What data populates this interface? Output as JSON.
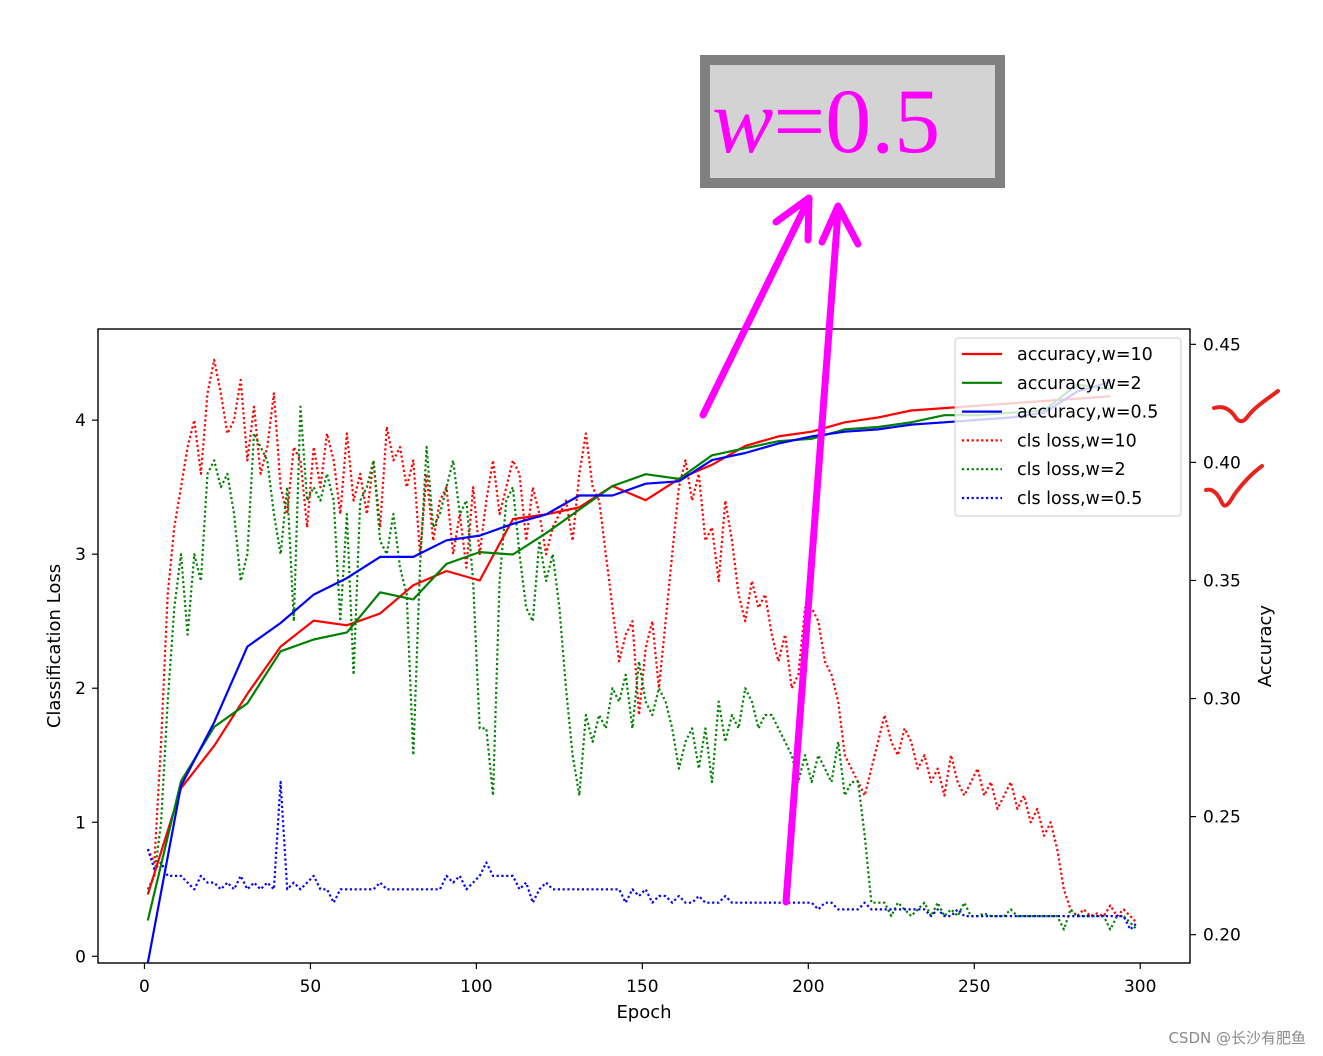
{
  "annotation": {
    "callout_italic": "w",
    "callout_rest": "=0.5",
    "text_color": "#ff00ff",
    "box_fill": "#d3d3d3",
    "box_border": "#808080",
    "checkmark_color": "#e8231b"
  },
  "watermark": "CSDN @长沙有肥鱼",
  "chart_data": {
    "type": "line",
    "title": "",
    "xlabel": "Epoch",
    "ylabel_left": "Classification Loss",
    "ylabel_right": "Accuracy",
    "xlim": [
      -14,
      315
    ],
    "ylim_left": [
      -0.05,
      4.68
    ],
    "ylim_right": [
      0.188,
      0.4565
    ],
    "x_ticks": [
      "0",
      "50",
      "100",
      "150",
      "200",
      "250",
      "300"
    ],
    "y_left_ticks": [
      "0",
      "1",
      "2",
      "3",
      "4"
    ],
    "y_right_ticks": [
      "0.20",
      "0.25",
      "0.30",
      "0.35",
      "0.40",
      "0.45"
    ],
    "grid": false,
    "legend_position": "upper right",
    "accuracy_series": [
      {
        "name": "accuracy,w=10",
        "color": "#ff0000",
        "style": "solid",
        "x": [
          1,
          11,
          21,
          31,
          41,
          51,
          61,
          71,
          81,
          91,
          101,
          111,
          121,
          131,
          141,
          151,
          161,
          171,
          181,
          191,
          201,
          211,
          221,
          231,
          241,
          251,
          261,
          271,
          281,
          291
        ],
        "y": [
          0.217,
          0.262,
          0.28,
          0.302,
          0.322,
          0.333,
          0.331,
          0.336,
          0.348,
          0.354,
          0.35,
          0.376,
          0.378,
          0.381,
          0.39,
          0.384,
          0.393,
          0.399,
          0.407,
          0.411,
          0.413,
          0.417,
          0.419,
          0.422,
          0.423,
          0.424,
          0.425,
          0.426,
          0.427,
          0.428
        ]
      },
      {
        "name": "accuracy,w=2",
        "color": "#008000",
        "style": "solid",
        "x": [
          1,
          11,
          21,
          31,
          41,
          51,
          61,
          71,
          81,
          91,
          101,
          111,
          121,
          131,
          141,
          151,
          161,
          171,
          181,
          191,
          201,
          211,
          221,
          231,
          241,
          251,
          261,
          271,
          281,
          291
        ],
        "y": [
          0.206,
          0.265,
          0.288,
          0.298,
          0.32,
          0.325,
          0.328,
          0.345,
          0.342,
          0.357,
          0.362,
          0.361,
          0.37,
          0.38,
          0.39,
          0.395,
          0.393,
          0.403,
          0.406,
          0.409,
          0.41,
          0.414,
          0.415,
          0.417,
          0.42,
          0.42,
          0.421,
          0.422,
          0.433,
          0.431
        ]
      },
      {
        "name": "accuracy,w=0.5",
        "color": "#0000ff",
        "style": "solid",
        "x": [
          1,
          11,
          21,
          31,
          41,
          51,
          61,
          71,
          81,
          91,
          101,
          111,
          121,
          131,
          141,
          151,
          161,
          171,
          181,
          191,
          201,
          211,
          221,
          231,
          241,
          251,
          261,
          271,
          281,
          291
        ],
        "y": [
          0.188,
          0.263,
          0.29,
          0.322,
          0.332,
          0.344,
          0.351,
          0.36,
          0.36,
          0.367,
          0.369,
          0.374,
          0.378,
          0.386,
          0.386,
          0.391,
          0.392,
          0.401,
          0.404,
          0.408,
          0.411,
          0.413,
          0.414,
          0.416,
          0.417,
          0.418,
          0.419,
          0.421,
          0.43,
          0.434
        ]
      }
    ],
    "loss_series": [
      {
        "name": "cls loss,w=10",
        "color": "#ff0000",
        "style": "dotted",
        "x": [
          1,
          3,
          5,
          7,
          9,
          11,
          13,
          15,
          17,
          19,
          21,
          23,
          25,
          27,
          29,
          31,
          33,
          35,
          37,
          39,
          41,
          43,
          45,
          47,
          49,
          51,
          53,
          55,
          57,
          59,
          61,
          63,
          65,
          67,
          69,
          71,
          73,
          75,
          77,
          79,
          81,
          83,
          85,
          87,
          89,
          91,
          93,
          95,
          97,
          99,
          101,
          103,
          105,
          107,
          109,
          111,
          113,
          115,
          117,
          119,
          121,
          123,
          125,
          127,
          129,
          131,
          133,
          135,
          137,
          139,
          141,
          143,
          145,
          147,
          149,
          151,
          153,
          155,
          157,
          159,
          161,
          163,
          165,
          167,
          169,
          171,
          173,
          175,
          177,
          179,
          181,
          183,
          185,
          187,
          189,
          191,
          193,
          195,
          197,
          199,
          201,
          203,
          205,
          207,
          209,
          211,
          213,
          215,
          217,
          219,
          221,
          223,
          225,
          227,
          229,
          231,
          233,
          235,
          237,
          239,
          241,
          243,
          245,
          247,
          249,
          251,
          253,
          255,
          257,
          259,
          261,
          263,
          265,
          267,
          269,
          271,
          273,
          275,
          277,
          279,
          281,
          283,
          285,
          287,
          289,
          291,
          293,
          295,
          297,
          299
        ],
        "y": [
          0.8,
          0.7,
          1.6,
          2.7,
          3.2,
          3.5,
          3.8,
          4.0,
          3.6,
          4.2,
          4.45,
          4.2,
          3.9,
          4.0,
          4.3,
          3.7,
          4.1,
          3.6,
          3.8,
          4.2,
          3.5,
          3.3,
          3.8,
          3.7,
          3.2,
          3.8,
          3.5,
          3.9,
          3.7,
          3.3,
          3.9,
          3.4,
          3.6,
          3.3,
          3.7,
          3.2,
          3.95,
          3.7,
          3.8,
          3.5,
          3.7,
          3.0,
          3.6,
          3.1,
          3.4,
          3.5,
          3.0,
          3.3,
          2.9,
          3.5,
          3.0,
          3.4,
          3.7,
          3.3,
          3.5,
          3.7,
          3.6,
          3.1,
          3.5,
          3.3,
          3.0,
          3.2,
          3.3,
          3.4,
          3.1,
          3.6,
          3.9,
          3.5,
          3.4,
          3.0,
          2.6,
          2.2,
          2.4,
          2.5,
          1.8,
          2.3,
          2.5,
          2.0,
          2.5,
          3.0,
          3.5,
          3.7,
          3.4,
          3.6,
          3.1,
          3.2,
          2.8,
          3.4,
          3.1,
          2.7,
          2.5,
          2.8,
          2.6,
          2.7,
          2.4,
          2.2,
          2.4,
          2.0,
          2.1,
          2.6,
          2.6,
          2.5,
          2.2,
          2.1,
          1.9,
          1.5,
          1.4,
          1.3,
          1.2,
          1.4,
          1.6,
          1.8,
          1.6,
          1.5,
          1.7,
          1.6,
          1.4,
          1.5,
          1.3,
          1.4,
          1.2,
          1.5,
          1.3,
          1.2,
          1.3,
          1.4,
          1.2,
          1.3,
          1.1,
          1.2,
          1.3,
          1.1,
          1.2,
          1.0,
          1.1,
          0.9,
          1.0,
          0.8,
          0.5,
          0.35,
          0.3,
          0.35,
          0.3,
          0.32,
          0.3,
          0.38,
          0.3,
          0.35,
          0.3,
          0.25
        ]
      },
      {
        "name": "cls loss,w=2",
        "color": "#008000",
        "style": "dotted",
        "x": [
          1,
          3,
          5,
          7,
          9,
          11,
          13,
          15,
          17,
          19,
          21,
          23,
          25,
          27,
          29,
          31,
          33,
          35,
          37,
          39,
          41,
          43,
          45,
          47,
          49,
          51,
          53,
          55,
          57,
          59,
          61,
          63,
          65,
          67,
          69,
          71,
          73,
          75,
          77,
          79,
          81,
          83,
          85,
          87,
          89,
          91,
          93,
          95,
          97,
          99,
          101,
          103,
          105,
          107,
          109,
          111,
          113,
          115,
          117,
          119,
          121,
          123,
          125,
          127,
          129,
          131,
          133,
          135,
          137,
          139,
          141,
          143,
          145,
          147,
          149,
          151,
          153,
          155,
          157,
          159,
          161,
          163,
          165,
          167,
          169,
          171,
          173,
          175,
          177,
          179,
          181,
          183,
          185,
          187,
          189,
          191,
          193,
          195,
          197,
          199,
          201,
          203,
          205,
          207,
          209,
          211,
          213,
          215,
          217,
          219,
          221,
          223,
          225,
          227,
          229,
          231,
          233,
          235,
          237,
          239,
          241,
          243,
          245,
          247,
          249,
          251,
          253,
          255,
          257,
          259,
          261,
          263,
          265,
          267,
          269,
          271,
          273,
          275,
          277,
          279,
          281,
          283,
          285,
          287,
          289,
          291,
          293,
          295,
          297,
          299
        ],
        "y": [
          0.5,
          0.6,
          1.0,
          1.9,
          2.6,
          3.0,
          2.4,
          3.0,
          2.8,
          3.6,
          3.7,
          3.5,
          3.6,
          3.3,
          2.8,
          3.0,
          3.9,
          3.8,
          3.7,
          3.3,
          3.0,
          3.5,
          2.5,
          4.1,
          3.4,
          3.5,
          3.4,
          3.6,
          3.4,
          2.5,
          3.3,
          2.1,
          3.4,
          3.5,
          3.7,
          3.1,
          3.0,
          3.3,
          2.9,
          2.7,
          1.5,
          2.9,
          3.8,
          3.2,
          3.3,
          3.5,
          3.7,
          3.3,
          3.4,
          2.8,
          1.7,
          1.7,
          1.2,
          2.8,
          3.4,
          3.5,
          3.0,
          2.6,
          2.5,
          3.1,
          2.8,
          3.0,
          2.6,
          2.0,
          1.5,
          1.2,
          1.8,
          1.6,
          1.8,
          1.7,
          2.0,
          1.9,
          2.1,
          1.7,
          2.2,
          1.9,
          1.8,
          2.0,
          1.9,
          1.7,
          1.4,
          1.6,
          1.7,
          1.4,
          1.7,
          1.3,
          1.9,
          1.6,
          1.8,
          1.7,
          2.0,
          1.9,
          1.7,
          1.8,
          1.8,
          1.7,
          1.6,
          1.5,
          1.3,
          1.5,
          1.3,
          1.5,
          1.4,
          1.3,
          1.6,
          1.2,
          1.3,
          1.3,
          0.9,
          0.4,
          0.4,
          0.4,
          0.3,
          0.4,
          0.35,
          0.3,
          0.35,
          0.4,
          0.3,
          0.4,
          0.3,
          0.35,
          0.3,
          0.4,
          0.3,
          0.3,
          0.32,
          0.3,
          0.3,
          0.3,
          0.35,
          0.3,
          0.3,
          0.3,
          0.3,
          0.3,
          0.3,
          0.3,
          0.2,
          0.35,
          0.3,
          0.3,
          0.3,
          0.3,
          0.3,
          0.2,
          0.3,
          0.3,
          0.25,
          0.2
        ]
      },
      {
        "name": "cls loss,w=0.5",
        "color": "#0000ff",
        "style": "dotted",
        "x": [
          1,
          3,
          5,
          7,
          9,
          11,
          13,
          15,
          17,
          19,
          21,
          23,
          25,
          27,
          29,
          31,
          33,
          35,
          37,
          39,
          41,
          43,
          45,
          47,
          49,
          51,
          53,
          55,
          57,
          59,
          61,
          63,
          65,
          67,
          69,
          71,
          73,
          75,
          77,
          79,
          81,
          83,
          85,
          87,
          89,
          91,
          93,
          95,
          97,
          99,
          101,
          103,
          105,
          107,
          109,
          111,
          113,
          115,
          117,
          119,
          121,
          123,
          125,
          127,
          129,
          131,
          133,
          135,
          137,
          139,
          141,
          143,
          145,
          147,
          149,
          151,
          153,
          155,
          157,
          159,
          161,
          163,
          165,
          167,
          169,
          171,
          173,
          175,
          177,
          179,
          181,
          183,
          185,
          187,
          189,
          191,
          193,
          195,
          197,
          199,
          201,
          203,
          205,
          207,
          209,
          211,
          213,
          215,
          217,
          219,
          221,
          223,
          225,
          227,
          229,
          231,
          233,
          235,
          237,
          239,
          241,
          243,
          245,
          247,
          249,
          251,
          253,
          255,
          257,
          259,
          261,
          263,
          265,
          267,
          269,
          271,
          273,
          275,
          277,
          279,
          281,
          283,
          285,
          287,
          289,
          291,
          293,
          295,
          297,
          299
        ],
        "y": [
          0.8,
          0.65,
          0.7,
          0.6,
          0.6,
          0.6,
          0.55,
          0.5,
          0.6,
          0.55,
          0.55,
          0.5,
          0.55,
          0.5,
          0.6,
          0.5,
          0.55,
          0.5,
          0.55,
          0.5,
          1.3,
          0.5,
          0.55,
          0.5,
          0.55,
          0.6,
          0.5,
          0.5,
          0.4,
          0.5,
          0.5,
          0.5,
          0.5,
          0.5,
          0.5,
          0.55,
          0.5,
          0.5,
          0.5,
          0.5,
          0.5,
          0.5,
          0.5,
          0.5,
          0.5,
          0.6,
          0.55,
          0.6,
          0.5,
          0.55,
          0.6,
          0.7,
          0.6,
          0.6,
          0.6,
          0.6,
          0.5,
          0.55,
          0.4,
          0.5,
          0.55,
          0.5,
          0.5,
          0.5,
          0.5,
          0.5,
          0.5,
          0.5,
          0.5,
          0.5,
          0.5,
          0.5,
          0.4,
          0.5,
          0.45,
          0.5,
          0.4,
          0.45,
          0.45,
          0.4,
          0.45,
          0.4,
          0.4,
          0.45,
          0.4,
          0.4,
          0.4,
          0.45,
          0.4,
          0.4,
          0.4,
          0.4,
          0.4,
          0.4,
          0.4,
          0.4,
          0.4,
          0.4,
          0.4,
          0.4,
          0.4,
          0.35,
          0.4,
          0.4,
          0.35,
          0.35,
          0.35,
          0.35,
          0.4,
          0.35,
          0.35,
          0.35,
          0.35,
          0.35,
          0.35,
          0.35,
          0.35,
          0.35,
          0.3,
          0.35,
          0.3,
          0.3,
          0.35,
          0.3,
          0.3,
          0.3,
          0.3,
          0.3,
          0.3,
          0.3,
          0.3,
          0.3,
          0.3,
          0.3,
          0.3,
          0.3,
          0.3,
          0.3,
          0.3,
          0.3,
          0.3,
          0.3,
          0.3,
          0.3,
          0.3,
          0.3,
          0.3,
          0.3,
          0.2,
          0.25
        ]
      }
    ]
  }
}
